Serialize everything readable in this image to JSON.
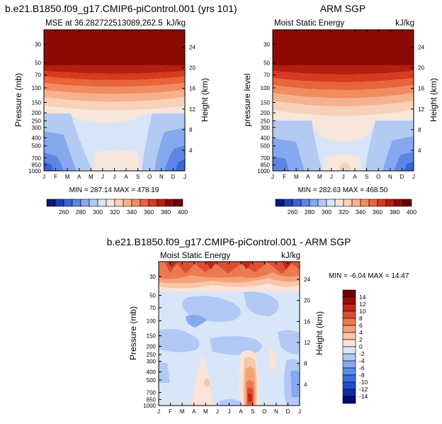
{
  "chart_data": [
    {
      "type": "heatmap",
      "title": "b.e21.B1850.f09_g17.CMIP6-piControl.001 (yrs 101)",
      "subtitle_left": "MSE at 36.282722513089,262.5",
      "subtitle_right": "kJ/kg",
      "ylabel": "Pressure (mb)",
      "ylabel_right": "Height (km)",
      "minmax": "MIN = 287.14  MAX = 478.19",
      "x": [
        "J",
        "F",
        "M",
        "A",
        "M",
        "J",
        "J",
        "A",
        "S",
        "O",
        "N",
        "D",
        "J"
      ],
      "y_pressure_ticks": [
        "30",
        "50",
        "70",
        "100",
        "150",
        "200",
        "250",
        "300",
        "400",
        "500",
        "700",
        "850",
        "1000"
      ],
      "y_height_ticks": [
        "4",
        "8",
        "12",
        "16",
        "20",
        "24"
      ],
      "ylim": [
        1000,
        20
      ],
      "yscale": "log",
      "color_levels": [
        250,
        260,
        270,
        280,
        290,
        300,
        310,
        320,
        330,
        340,
        350,
        360,
        370,
        380,
        390,
        400
      ],
      "min": 287.14,
      "max": 478.19
    },
    {
      "type": "heatmap",
      "title": "ARM SGP",
      "subtitle_left": "Moist Static Energy",
      "subtitle_right": "kJ/kg",
      "ylabel": "pressure level",
      "ylabel_right": "Height (km)",
      "minmax": "MIN = 282.63  MAX = 468.50",
      "x": [
        "J",
        "F",
        "M",
        "A",
        "M",
        "J",
        "J",
        "A",
        "S",
        "O",
        "N",
        "D",
        "J"
      ],
      "y_pressure_ticks": [
        "30",
        "50",
        "70",
        "100",
        "150",
        "200",
        "250",
        "300",
        "400",
        "500",
        "700",
        "850",
        "1000"
      ],
      "y_height_ticks": [
        "4",
        "8",
        "12",
        "16",
        "20",
        "24"
      ],
      "ylim": [
        1000,
        20
      ],
      "yscale": "log",
      "color_levels": [
        250,
        260,
        270,
        280,
        290,
        300,
        310,
        320,
        330,
        340,
        350,
        360,
        370,
        380,
        390,
        400
      ],
      "min": 282.63,
      "max": 468.5
    },
    {
      "type": "heatmap",
      "title": "b.e21.B1850.f09_g17.CMIP6-piControl.001 - ARM SGP",
      "subtitle_left": "Moist Static Energy",
      "subtitle_right": "kJ/kg",
      "ylabel": "Pressure (mb)",
      "ylabel_right": "Height (km)",
      "minmax": "MIN =  -6.04  MAX =  14.47",
      "x": [
        "J",
        "F",
        "M",
        "A",
        "M",
        "J",
        "J",
        "A",
        "S",
        "O",
        "N",
        "D",
        "J"
      ],
      "y_pressure_ticks": [
        "30",
        "50",
        "70",
        "100",
        "150",
        "200",
        "250",
        "300",
        "400",
        "500",
        "700",
        "850",
        "1000"
      ],
      "y_height_ticks": [
        "4",
        "8",
        "12",
        "16",
        "20",
        "24"
      ],
      "ylim": [
        1000,
        20
      ],
      "yscale": "log",
      "color_levels": [
        -14,
        -12,
        -10,
        -8,
        -6,
        -4,
        -2,
        0,
        2,
        4,
        6,
        8,
        10,
        12,
        14
      ],
      "min": -6.04,
      "max": 14.47
    }
  ],
  "colorbars": {
    "top_labels": [
      "260",
      "280",
      "300",
      "320",
      "340",
      "360",
      "380",
      "400"
    ],
    "diff_labels": [
      "14",
      "12",
      "10",
      "8",
      "6",
      "4",
      "2",
      "0",
      "-2",
      "-4",
      "-6",
      "-8",
      "-10",
      "-12",
      "-14"
    ]
  },
  "colors": {
    "abs_palette": [
      "#0a1a6e",
      "#1e3fb4",
      "#3a63d8",
      "#5d86e4",
      "#86a8ee",
      "#b3caf3",
      "#d8e5f8",
      "#f7e6da",
      "#f8d2b8",
      "#f6b28f",
      "#f28c60",
      "#e9643a",
      "#d63b1f",
      "#b51e10",
      "#8e0a05",
      "#6a0000"
    ],
    "diff_palette": [
      "#050a6b",
      "#0f2da8",
      "#1d4fd0",
      "#3b6ee0",
      "#5e8ce8",
      "#86aaef",
      "#b1c9f4",
      "#d9e6f9",
      "#fbe3d5",
      "#f8c6a9",
      "#f4a27b",
      "#ec7a51",
      "#dd4e30",
      "#c2271a",
      "#9b0e08",
      "#6e0000"
    ]
  }
}
